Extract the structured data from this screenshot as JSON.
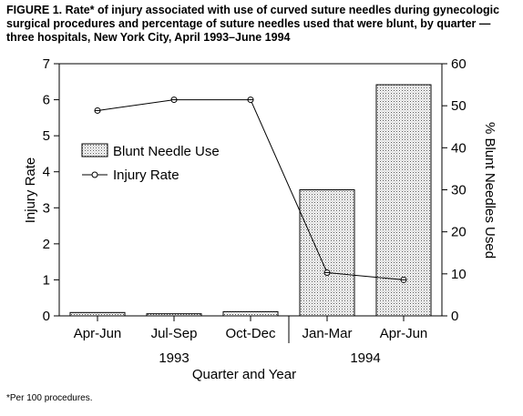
{
  "caption": "FIGURE 1. Rate* of injury associated with use of curved suture needles during gynecologic surgical procedures and percentage of suture needles used that were blunt, by quarter — three hospitals, New York City, April 1993–June 1994",
  "footnote": "*Per 100 procedures.",
  "chart_data": {
    "type": "bar",
    "categories": [
      "Apr-Jun",
      "Jul-Sep",
      "Oct-Dec",
      "Jan-Mar",
      "Apr-Jun"
    ],
    "year_labels": [
      {
        "label": "1993",
        "categories": [
          "Apr-Jun",
          "Jul-Sep",
          "Oct-Dec"
        ]
      },
      {
        "label": "1994",
        "categories": [
          "Jan-Mar",
          "Apr-Jun"
        ]
      }
    ],
    "xlabel": "Quarter and Year",
    "ylabel": "Injury Rate",
    "ylabel_right": "% Blunt Needles Used",
    "ylim": [
      0,
      7
    ],
    "ylim_right": [
      0,
      60
    ],
    "yticks": [
      0,
      1,
      2,
      3,
      4,
      5,
      6,
      7
    ],
    "yticks_right": [
      0,
      10,
      20,
      30,
      40,
      50,
      60
    ],
    "legend_position": "left",
    "grid": false,
    "series": [
      {
        "name": "Blunt Needle Use",
        "type": "bar",
        "axis": "right",
        "values": [
          0.8,
          0.5,
          1.0,
          30.0,
          55.0
        ]
      },
      {
        "name": "Injury Rate",
        "type": "line",
        "axis": "left",
        "values": [
          5.7,
          6.0,
          6.0,
          1.2,
          1.0
        ]
      }
    ]
  }
}
